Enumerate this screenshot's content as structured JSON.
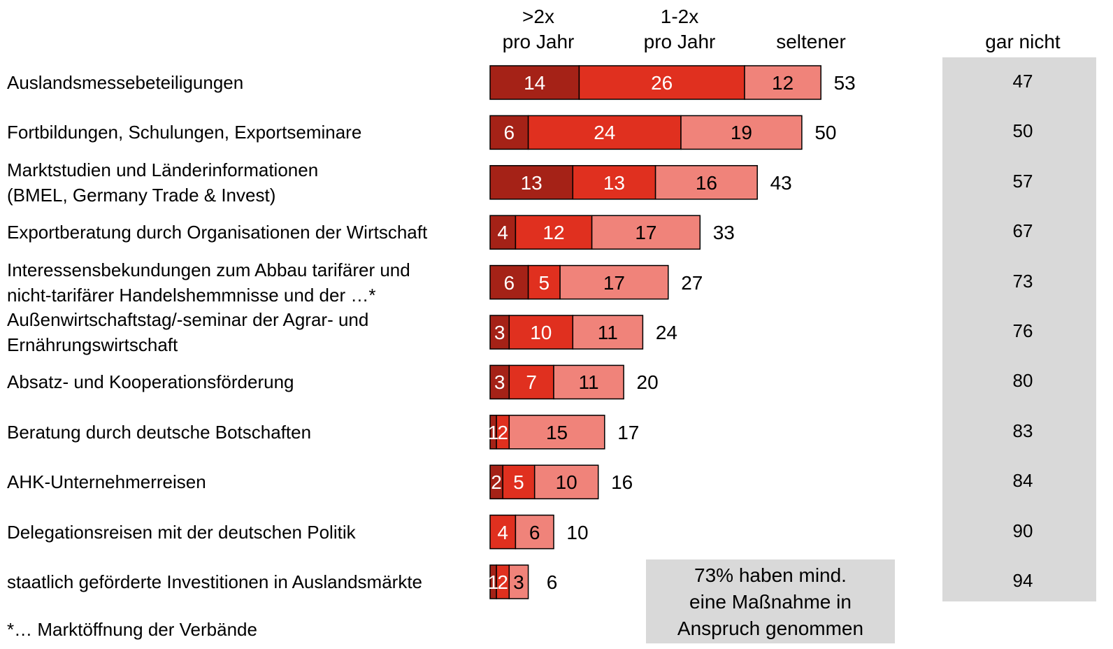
{
  "chart_data": {
    "type": "bar",
    "orientation": "horizontal",
    "stacked": true,
    "categories": [
      "Auslandsmessebeteiligungen",
      "Fortbildungen, Schulungen, Exportseminare",
      "Marktstudien und Länderinformationen\n(BMEL, Germany Trade & Invest)",
      "Exportberatung durch Organisationen der Wirtschaft",
      "Interessensbekundungen zum Abbau tarifärer und\nnicht-tarifärer Handelshemmnisse und der …*",
      "Außenwirtschaftstag/-seminar der Agrar- und\nErnährungswirtschaft",
      "Absatz- und Kooperationsförderung",
      "Beratung durch deutsche Botschaften",
      "AHK-Unternehmerreisen",
      "Delegationsreisen mit der deutschen Politik",
      "staatlich geförderte Investitionen in Auslandsmärkte"
    ],
    "series": [
      {
        "name": ">2x\npro Jahr",
        "color": "#a52217",
        "values": [
          14,
          6,
          13,
          4,
          6,
          3,
          3,
          1,
          2,
          null,
          1
        ]
      },
      {
        "name": "1-2x\npro Jahr",
        "color": "#e0301f",
        "values": [
          26,
          24,
          13,
          12,
          5,
          10,
          7,
          2,
          5,
          4,
          2
        ]
      },
      {
        "name": "seltener",
        "color": "#f0837a",
        "values": [
          12,
          19,
          16,
          17,
          17,
          11,
          11,
          15,
          10,
          6,
          3
        ]
      }
    ],
    "totals": [
      53,
      50,
      43,
      33,
      27,
      24,
      20,
      17,
      16,
      10,
      6
    ],
    "not_at_all": {
      "name": "gar nicht",
      "values": [
        47,
        50,
        57,
        67,
        73,
        76,
        80,
        83,
        84,
        90,
        94
      ]
    },
    "annotation": "73% haben mind.\neine Maßnahme in\nAnspruch genommen",
    "footnote": "*… Marktöffnung der Verbände"
  }
}
